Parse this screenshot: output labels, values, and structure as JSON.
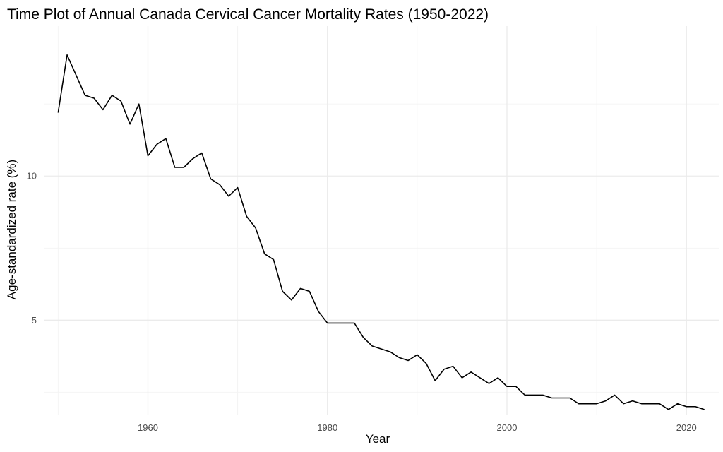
{
  "chart_data": {
    "type": "line",
    "title": "Time Plot of Annual Canada Cervical Cancer Mortality Rates (1950-2022)",
    "xlabel": "Year",
    "ylabel": "Age-standardized rate (%)",
    "xlim": [
      1948.4,
      2023.6
    ],
    "ylim": [
      1.7,
      15.2
    ],
    "x_ticks": [
      1960,
      1980,
      2000,
      2020
    ],
    "x_tick_labels": [
      "1960",
      "1980",
      "2000",
      "2020"
    ],
    "x_minor_ticks": [
      1950,
      1970,
      1990,
      2010
    ],
    "y_ticks": [
      5,
      10
    ],
    "y_tick_labels": [
      "5",
      "10"
    ],
    "y_minor_ticks": [
      2.5,
      7.5,
      12.5
    ],
    "grid": true,
    "series": [
      {
        "name": "Canada",
        "x": [
          1950,
          1951,
          1952,
          1953,
          1954,
          1955,
          1956,
          1957,
          1958,
          1959,
          1960,
          1961,
          1962,
          1963,
          1964,
          1965,
          1966,
          1967,
          1968,
          1969,
          1970,
          1971,
          1972,
          1973,
          1974,
          1975,
          1976,
          1977,
          1978,
          1979,
          1980,
          1981,
          1982,
          1983,
          1984,
          1985,
          1986,
          1987,
          1988,
          1989,
          1990,
          1991,
          1992,
          1993,
          1994,
          1995,
          1996,
          1997,
          1998,
          1999,
          2000,
          2001,
          2002,
          2003,
          2004,
          2005,
          2006,
          2007,
          2008,
          2009,
          2010,
          2011,
          2012,
          2013,
          2014,
          2015,
          2016,
          2017,
          2018,
          2019,
          2020,
          2021,
          2022
        ],
        "values": [
          12.2,
          14.2,
          13.5,
          12.8,
          12.7,
          12.3,
          12.8,
          12.6,
          11.8,
          12.5,
          10.7,
          11.1,
          11.3,
          10.3,
          10.3,
          10.6,
          10.8,
          9.9,
          9.7,
          9.3,
          9.6,
          8.6,
          8.2,
          7.3,
          7.1,
          6.0,
          5.7,
          6.1,
          6.0,
          5.3,
          4.9,
          4.9,
          4.9,
          4.9,
          4.4,
          4.1,
          4.0,
          3.9,
          3.7,
          3.6,
          3.8,
          3.5,
          2.9,
          3.3,
          3.4,
          3.0,
          3.2,
          3.0,
          2.8,
          3.0,
          2.7,
          2.7,
          2.4,
          2.4,
          2.4,
          2.3,
          2.3,
          2.3,
          2.1,
          2.1,
          2.1,
          2.2,
          2.4,
          2.1,
          2.2,
          2.1,
          2.1,
          2.1,
          1.9,
          2.1,
          2.0,
          2.0,
          1.9
        ]
      }
    ]
  }
}
